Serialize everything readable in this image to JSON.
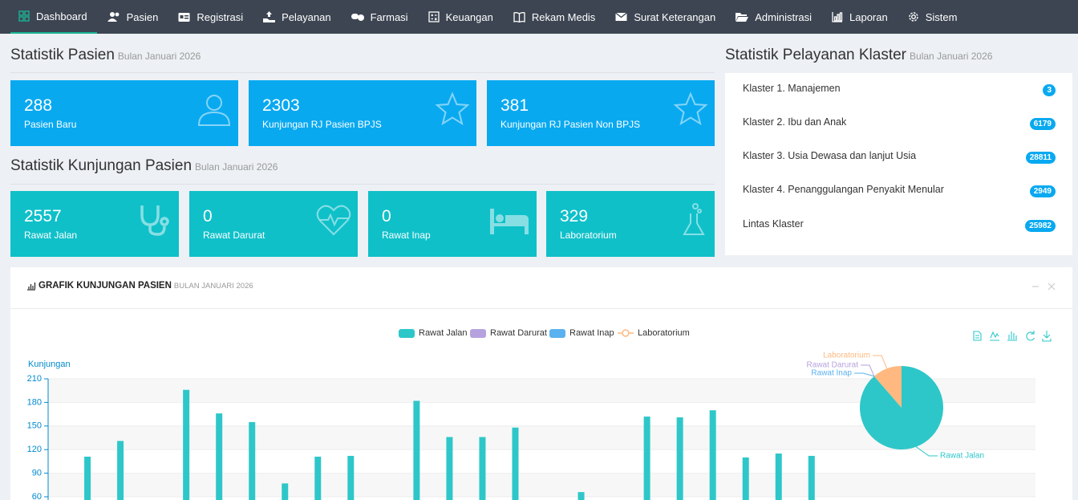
{
  "nav": {
    "items": [
      "Dashboard",
      "Pasien",
      "Registrasi",
      "Pelayanan",
      "Farmasi",
      "Keuangan",
      "Rekam Medis",
      "Surat Keterangan",
      "Administrasi",
      "Laporan",
      "Sistem"
    ]
  },
  "patient_stats": {
    "title": "Statistik Pasien",
    "subtitle": "Bulan Januari 2026",
    "cards": [
      {
        "value": 288,
        "label": "Pasien Baru"
      },
      {
        "value": 2303,
        "label": "Kunjungan RJ Pasien BPJS"
      },
      {
        "value": 381,
        "label": "Kunjungan RJ Pasien Non BPJS"
      }
    ]
  },
  "visit_stats": {
    "title": "Statistik Kunjungan Pasien",
    "subtitle": "Bulan Januari 2026",
    "cards": [
      {
        "value": 2557,
        "label": "Rawat Jalan"
      },
      {
        "value": 0,
        "label": "Rawat Darurat"
      },
      {
        "value": 0,
        "label": "Rawat Inap"
      },
      {
        "value": 329,
        "label": "Laboratorium"
      }
    ]
  },
  "cluster_stats": {
    "title": "Statistik Pelayanan Klaster",
    "subtitle": "Bulan Januari 2026",
    "items": [
      {
        "label": "Klaster 1. Manajemen",
        "count": 3
      },
      {
        "label": "Klaster 2. Ibu dan Anak",
        "count": 6179
      },
      {
        "label": "Klaster 3. Usia Dewasa dan lanjut Usia",
        "count": 28811
      },
      {
        "label": "Klaster 4. Penanggulangan Penyakit Menular",
        "count": 2949
      },
      {
        "label": "Lintas Klaster",
        "count": 25982
      }
    ]
  },
  "chart_panel": {
    "title": "GRAFIK KUNJUNGAN PASIEN",
    "subtitle": "BULAN JANUARI 2026"
  },
  "chart_data": [
    {
      "type": "bar",
      "y_label": "Kunjungan",
      "categories": [
        null,
        null,
        null,
        null,
        null,
        null,
        null,
        null,
        null,
        null,
        null,
        null,
        null,
        null,
        null,
        null,
        null,
        null,
        null,
        null,
        null,
        null,
        null,
        null,
        null,
        null,
        null,
        null,
        null,
        null
      ],
      "series": [
        {
          "name": "Rawat Jalan",
          "color": "#2ec7c9",
          "values": [
            null,
            111,
            131,
            null,
            196,
            166,
            155,
            77,
            111,
            112,
            null,
            182,
            136,
            136,
            148,
            null,
            66,
            null,
            162,
            161,
            170,
            110,
            115,
            112,
            null,
            null,
            null,
            null,
            null,
            null
          ]
        },
        {
          "name": "Rawat Darurat",
          "color": "#b6a2de",
          "values": [
            null,
            null,
            null,
            null,
            null,
            null,
            null,
            null,
            null,
            null,
            null,
            null,
            null,
            null,
            null,
            null,
            null,
            null,
            null,
            null,
            null,
            null,
            null,
            null,
            null,
            null,
            null,
            null,
            null,
            null
          ]
        },
        {
          "name": "Rawat Inap",
          "color": "#5ab1ef",
          "values": [
            null,
            null,
            null,
            null,
            null,
            null,
            null,
            null,
            null,
            null,
            null,
            null,
            null,
            null,
            null,
            null,
            null,
            null,
            null,
            null,
            null,
            null,
            null,
            null,
            null,
            null,
            null,
            null,
            null,
            null
          ]
        },
        {
          "name": "Laboratorium",
          "color": "#ffb980",
          "type": "line",
          "values": [
            null,
            null,
            null,
            null,
            null,
            null,
            null,
            null,
            null,
            null,
            null,
            null,
            null,
            null,
            null,
            null,
            null,
            null,
            null,
            null,
            null,
            null,
            null,
            null,
            null,
            null,
            null,
            null,
            null,
            null
          ]
        }
      ],
      "ylim": [
        60,
        210
      ],
      "yticks": [
        60,
        90,
        120,
        150,
        180,
        210
      ],
      "split_area": true
    },
    {
      "type": "pie",
      "categories": [
        "Rawat Jalan",
        "Rawat Darurat",
        "Rawat Inap",
        "Laboratorium"
      ],
      "values": [
        2557,
        0,
        0,
        329
      ],
      "colors": [
        "#2ec7c9",
        "#b6a2de",
        "#5ab1ef",
        "#ffb980"
      ]
    }
  ]
}
